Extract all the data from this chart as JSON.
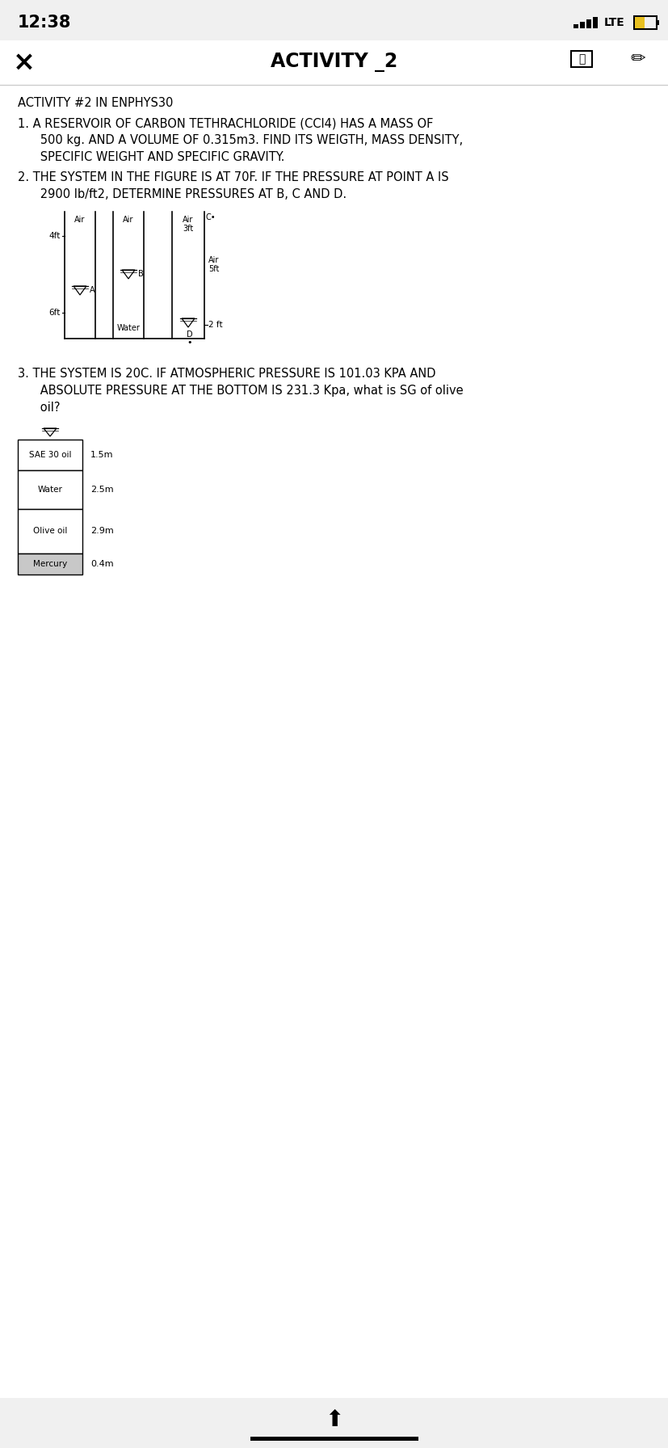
{
  "bg_color": "#f0f0f0",
  "page_bg": "#ffffff",
  "status_time": "12:38",
  "nav_title": "ACTIVITY _2",
  "header": "ACTIVITY #2 IN ENPHYS30",
  "q1_line1": "1. A RESERVOIR OF CARBON TETHRACHLORIDE (CCl4) HAS A MASS OF",
  "q1_line2": "      500 kg. AND A VOLUME OF 0.315m3. FIND ITS WEIGTH, MASS DENSITY,",
  "q1_line3": "      SPECIFIC WEIGHT AND SPECIFIC GRAVITY.",
  "q2_line1": "2. THE SYSTEM IN THE FIGURE IS AT 70F. IF THE PRESSURE AT POINT A IS",
  "q2_line2": "      2900 lb/ft2, DETERMINE PRESSURES AT B, C AND D.",
  "q3_line1": "3. THE SYSTEM IS 20C. IF ATMOSPHERIC PRESSURE IS 101.03 KPA AND",
  "q3_line2": "      ABSOLUTE PRESSURE AT THE BOTTOM IS 231.3 Kpa, what is SG of olive",
  "q3_line3": "      oil?",
  "fig3_layers": [
    {
      "label": "SAE 30 oil",
      "depth": "1.5m",
      "shaded": false
    },
    {
      "label": "Water",
      "depth": "2.5m",
      "shaded": false
    },
    {
      "label": "Olive oil",
      "depth": "2.9m",
      "shaded": false
    },
    {
      "label": "Mercury",
      "depth": "0.4m",
      "shaded": true
    }
  ]
}
